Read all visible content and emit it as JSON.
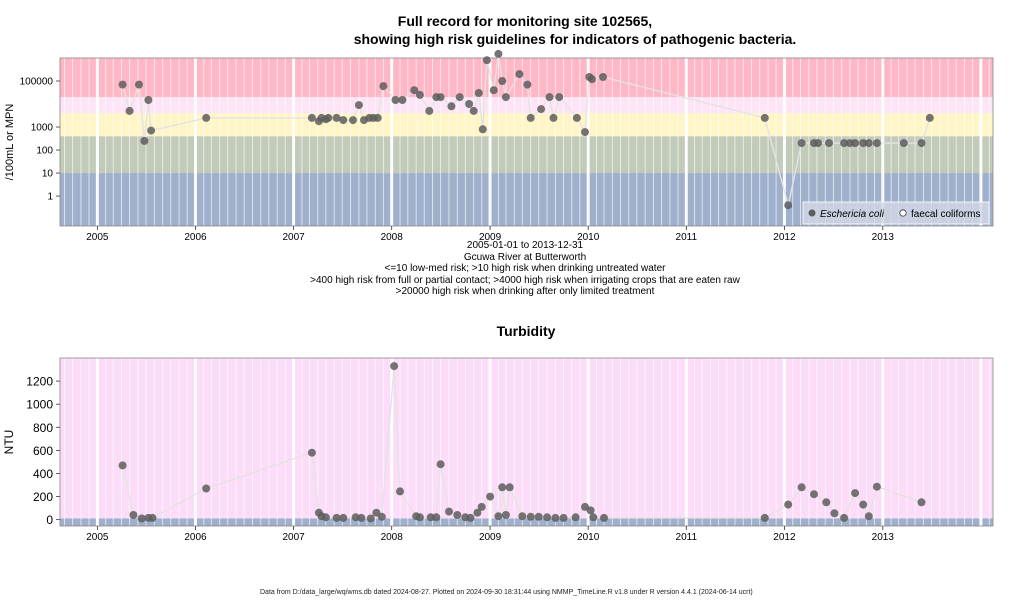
{
  "title_line1": "Full record for monitoring site 102565,",
  "title_line2": "showing high risk guidelines for indicators of pathogenic bacteria.",
  "subtitle_lines": [
    "2005-01-01 to 2013-12-31",
    "Gcuwa River at Butterworth",
    "<=10 low-med risk; >10 high risk when drinking untreated water",
    ">400 high risk from full or partial contact; >4000 high risk when irrigating crops that are eaten raw",
    ">20000 high risk when drinking after only limited treatment"
  ],
  "footer": "Data from D:/data_large/wq/wms.db dated 2024-08-27. Plotted on 2024-09-30 18:31:44 using NMMP_TimeLine.R v1.8 under R version 4.4.1 (2024-06-14 ucrt)",
  "colors": {
    "band_low": "#9fb0cc",
    "band_10_400": "#c2cab9",
    "band_400_4000": "#fff5c6",
    "band_4000_20000": "#fde4f6",
    "band_high": "#ffb7c5",
    "turbidity_bg": "#fcdcf8",
    "turbidity_low": "#9fb0cc",
    "point": "#5d5d5d",
    "line": "#e3e3e3"
  },
  "chart_data": [
    {
      "type": "scatter",
      "title": "",
      "ylabel": "/100mL or MPN",
      "yscale": "log",
      "ylim": [
        0.05,
        1000000
      ],
      "yticks": [
        1,
        10,
        100,
        1000,
        100000
      ],
      "ytick_labels": [
        "1",
        "10",
        "100",
        "1000",
        "100000"
      ],
      "xlim": [
        "2004-08-15",
        "2014-02-15"
      ],
      "xticks": [
        "2005",
        "2006",
        "2007",
        "2008",
        "2009",
        "2010",
        "2011",
        "2012",
        "2013"
      ],
      "grid": true,
      "thresholds": [
        10,
        400,
        4000,
        20000
      ],
      "legend": {
        "position": "bottom-right",
        "items": [
          "Eschericia coli",
          "faecal coliforms"
        ]
      },
      "series": [
        {
          "name": "Eschericia coli",
          "marker": "filled",
          "points": [
            [
              "2005-04-05",
              70000
            ],
            [
              "2005-05-01",
              5000
            ],
            [
              "2005-06-05",
              70000
            ],
            [
              "2005-06-25",
              250
            ],
            [
              "2005-07-10",
              15000
            ],
            [
              "2005-07-20",
              700
            ],
            [
              "2006-02-10",
              2500
            ],
            [
              "2007-03-10",
              2500
            ],
            [
              "2007-04-05",
              1800
            ],
            [
              "2007-04-15",
              2500
            ],
            [
              "2007-05-01",
              2200
            ],
            [
              "2007-05-10",
              2500
            ],
            [
              "2007-06-10",
              2500
            ],
            [
              "2007-07-05",
              2000
            ],
            [
              "2007-08-10",
              2000
            ],
            [
              "2007-09-01",
              9000
            ],
            [
              "2007-09-20",
              2000
            ],
            [
              "2007-10-10",
              2500
            ],
            [
              "2007-10-25",
              2500
            ],
            [
              "2007-11-10",
              2500
            ],
            [
              "2007-12-01",
              60000
            ],
            [
              "2008-01-15",
              15000
            ],
            [
              "2008-02-10",
              15000
            ],
            [
              "2008-03-25",
              40000
            ],
            [
              "2008-04-15",
              25000
            ],
            [
              "2008-05-20",
              5000
            ],
            [
              "2008-06-15",
              20000
            ],
            [
              "2008-07-01",
              20000
            ],
            [
              "2008-08-10",
              8000
            ],
            [
              "2008-09-10",
              20000
            ],
            [
              "2008-10-15",
              10000
            ],
            [
              "2008-11-01",
              5000
            ],
            [
              "2008-11-20",
              30000
            ],
            [
              "2008-12-05",
              800
            ],
            [
              "2008-12-20",
              800000
            ],
            [
              "2009-01-15",
              40000
            ],
            [
              "2009-02-01",
              1500000
            ],
            [
              "2009-02-15",
              100000
            ],
            [
              "2009-03-01",
              20000
            ],
            [
              "2009-04-20",
              200000
            ],
            [
              "2009-05-20",
              70000
            ],
            [
              "2009-06-01",
              2500
            ],
            [
              "2009-07-10",
              6000
            ],
            [
              "2009-08-10",
              20000
            ],
            [
              "2009-08-25",
              2500
            ],
            [
              "2009-09-15",
              20000
            ],
            [
              "2009-11-20",
              2500
            ],
            [
              "2009-12-20",
              600
            ],
            [
              "2010-01-05",
              150000
            ],
            [
              "2010-01-15",
              120000
            ],
            [
              "2010-02-25",
              150000
            ],
            [
              "2011-10-20",
              2500
            ],
            [
              "2012-01-15",
              0.4
            ],
            [
              "2012-03-05",
              200
            ],
            [
              "2012-04-20",
              200
            ],
            [
              "2012-05-05",
              200
            ],
            [
              "2012-06-15",
              200
            ],
            [
              "2012-08-10",
              200
            ],
            [
              "2012-09-01",
              200
            ],
            [
              "2012-09-20",
              200
            ],
            [
              "2012-10-20",
              200
            ],
            [
              "2012-11-10",
              200
            ],
            [
              "2012-12-10",
              200
            ],
            [
              "2013-03-20",
              200
            ],
            [
              "2013-05-25",
              200
            ],
            [
              "2013-06-25",
              2500
            ]
          ]
        },
        {
          "name": "faecal coliforms",
          "marker": "open",
          "points": []
        }
      ]
    },
    {
      "type": "scatter",
      "title": "Turbidity",
      "ylabel": "NTU",
      "ylim": [
        -55,
        1400
      ],
      "yticks": [
        0,
        200,
        400,
        600,
        800,
        1000,
        1200
      ],
      "xlim": [
        "2004-08-15",
        "2014-02-15"
      ],
      "xticks": [
        "2005",
        "2006",
        "2007",
        "2008",
        "2009",
        "2010",
        "2011",
        "2012",
        "2013"
      ],
      "grid": true,
      "band_top": 10,
      "series": [
        {
          "name": "",
          "marker": "filled",
          "points": [
            [
              "2005-04-05",
              470
            ],
            [
              "2005-05-15",
              40
            ],
            [
              "2005-06-15",
              10
            ],
            [
              "2005-07-10",
              15
            ],
            [
              "2005-07-25",
              15
            ],
            [
              "2006-02-10",
              270
            ],
            [
              "2007-03-10",
              580
            ],
            [
              "2007-04-05",
              60
            ],
            [
              "2007-04-15",
              30
            ],
            [
              "2007-05-01",
              20
            ],
            [
              "2007-06-10",
              15
            ],
            [
              "2007-07-05",
              15
            ],
            [
              "2007-08-20",
              20
            ],
            [
              "2007-09-10",
              15
            ],
            [
              "2007-10-15",
              10
            ],
            [
              "2007-11-05",
              60
            ],
            [
              "2007-11-25",
              25
            ],
            [
              "2008-01-10",
              1330
            ],
            [
              "2008-02-01",
              245
            ],
            [
              "2008-04-01",
              30
            ],
            [
              "2008-04-15",
              20
            ],
            [
              "2008-05-25",
              20
            ],
            [
              "2008-06-15",
              20
            ],
            [
              "2008-07-01",
              480
            ],
            [
              "2008-08-01",
              70
            ],
            [
              "2008-09-01",
              40
            ],
            [
              "2008-10-01",
              20
            ],
            [
              "2008-10-20",
              15
            ],
            [
              "2008-11-15",
              60
            ],
            [
              "2008-12-01",
              110
            ],
            [
              "2009-01-01",
              200
            ],
            [
              "2009-02-01",
              30
            ],
            [
              "2009-02-15",
              280
            ],
            [
              "2009-03-01",
              40
            ],
            [
              "2009-03-15",
              280
            ],
            [
              "2009-05-01",
              30
            ],
            [
              "2009-06-01",
              25
            ],
            [
              "2009-07-01",
              25
            ],
            [
              "2009-08-01",
              20
            ],
            [
              "2009-09-01",
              15
            ],
            [
              "2009-10-01",
              15
            ],
            [
              "2009-11-15",
              20
            ],
            [
              "2009-12-20",
              110
            ],
            [
              "2010-01-10",
              80
            ],
            [
              "2010-01-20",
              20
            ],
            [
              "2010-03-01",
              15
            ],
            [
              "2011-10-20",
              15
            ],
            [
              "2012-01-15",
              130
            ],
            [
              "2012-03-05",
              280
            ],
            [
              "2012-04-20",
              220
            ],
            [
              "2012-06-05",
              150
            ],
            [
              "2012-07-05",
              55
            ],
            [
              "2012-08-10",
              15
            ],
            [
              "2012-09-20",
              230
            ],
            [
              "2012-10-20",
              130
            ],
            [
              "2012-11-10",
              30
            ],
            [
              "2012-12-10",
              285
            ],
            [
              "2013-05-25",
              150
            ]
          ]
        }
      ]
    }
  ]
}
